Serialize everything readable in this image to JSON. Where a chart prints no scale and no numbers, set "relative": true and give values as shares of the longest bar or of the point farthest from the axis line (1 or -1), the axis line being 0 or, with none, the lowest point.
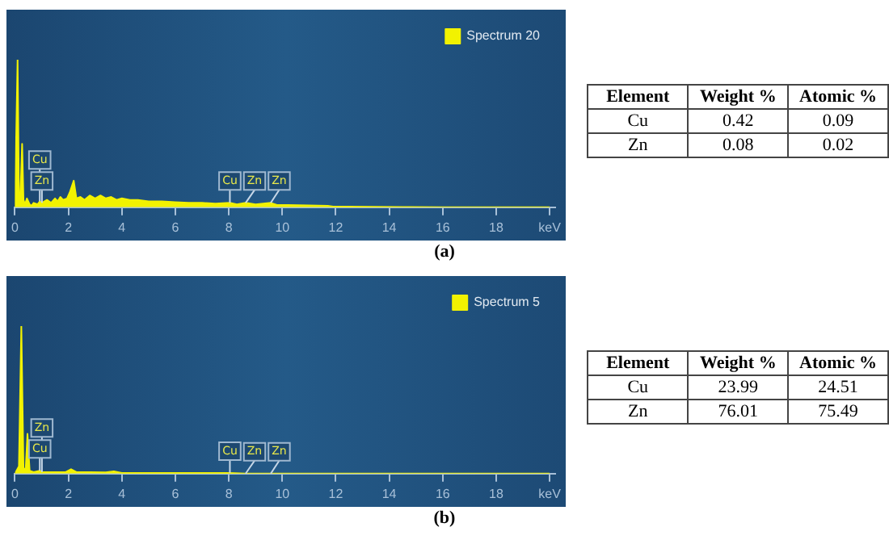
{
  "chart_data": [
    {
      "type": "area",
      "title": "(a)",
      "relative": true,
      "legend": "top right",
      "xlim": [
        0,
        20.2
      ],
      "xticks": [
        0,
        2,
        4,
        6,
        8,
        10,
        12,
        14,
        16,
        18,
        {
          "value": 20,
          "label": "keV"
        }
      ],
      "grid": false,
      "x": [
        0,
        0.1,
        0.15,
        0.2,
        0.27,
        0.32,
        0.38,
        0.45,
        0.55,
        0.62,
        0.7,
        0.85,
        0.93,
        1.01,
        1.2,
        1.35,
        1.5,
        1.6,
        1.7,
        1.8,
        1.95,
        2.05,
        2.2,
        2.3,
        2.45,
        2.6,
        2.8,
        3.0,
        3.2,
        3.4,
        3.6,
        3.8,
        4.0,
        4.3,
        4.6,
        5.0,
        5.5,
        6.0,
        6.5,
        7.0,
        7.5,
        8.04,
        8.3,
        8.63,
        9.0,
        9.57,
        9.8,
        10.2,
        11,
        11.7,
        11.9,
        12.5,
        13.5,
        14.5,
        16,
        18,
        20
      ],
      "series": [
        {
          "name": "Spectrum 20",
          "color": "#f2f200",
          "values": [
            0,
            1,
            0.1,
            0.05,
            0.43,
            0.05,
            0.02,
            0.06,
            0.02,
            0.01,
            0.03,
            0.02,
            0.04,
            0.03,
            0.05,
            0.03,
            0.06,
            0.04,
            0.07,
            0.05,
            0.06,
            0.1,
            0.18,
            0.06,
            0.07,
            0.05,
            0.08,
            0.06,
            0.08,
            0.06,
            0.07,
            0.05,
            0.06,
            0.05,
            0.05,
            0.04,
            0.04,
            0.035,
            0.03,
            0.03,
            0.025,
            0.03,
            0.02,
            0.03,
            0.02,
            0.03,
            0.015,
            0.015,
            0.012,
            0.01,
            0.004,
            0.004,
            0.003,
            0.002,
            0,
            0,
            0
          ]
        }
      ],
      "annotations": [
        {
          "text": "Zn",
          "x": 1.01,
          "y": 0.03
        },
        {
          "text": "Cu",
          "x": 0.93,
          "y": 0.04
        },
        {
          "text": "Cu",
          "x": 8.04,
          "y": 0.03
        },
        {
          "text": "Zn",
          "x": 8.63,
          "y": 0.03
        },
        {
          "text": "Zn",
          "x": 9.57,
          "y": 0.03
        }
      ]
    },
    {
      "type": "other",
      "annotations": [
        "Element",
        "Weight %",
        "Atomic %",
        "Cu",
        "0.42",
        "0.09",
        "Zn",
        "0.08",
        "0.02"
      ]
    },
    {
      "type": "area",
      "title": "(b)",
      "relative": true,
      "legend": "top right",
      "xlim": [
        0,
        20.2
      ],
      "xticks": [
        0,
        2,
        4,
        6,
        8,
        10,
        12,
        14,
        16,
        18,
        {
          "value": 20,
          "label": "keV"
        }
      ],
      "grid": false,
      "x": [
        0,
        0.15,
        0.24,
        0.32,
        0.4,
        0.47,
        0.55,
        0.7,
        0.93,
        1.01,
        1.5,
        1.9,
        2.1,
        2.3,
        2.8,
        3.4,
        3.7,
        4.0,
        5,
        6,
        7,
        8.04,
        8.63,
        9.57,
        20
      ],
      "series": [
        {
          "name": "Spectrum 5",
          "color": "#f2f200",
          "values": [
            0,
            0.05,
            1,
            0.04,
            0.02,
            0.27,
            0.02,
            0.01,
            0.02,
            0.01,
            0.01,
            0.01,
            0.03,
            0.01,
            0.01,
            0.008,
            0.015,
            0.005,
            0.005,
            0.005,
            0.005,
            0.005,
            0,
            0,
            0
          ]
        }
      ],
      "annotations": [
        {
          "text": "Cu",
          "x": 0.93,
          "y": 0.02
        },
        {
          "text": "Zn",
          "x": 1.01,
          "y": 0.01
        },
        {
          "text": "Cu",
          "x": 8.04,
          "y": 0.005
        },
        {
          "text": "Zn",
          "x": 8.63,
          "y": 0
        },
        {
          "text": "Zn",
          "x": 9.57,
          "y": 0
        }
      ]
    },
    {
      "type": "other",
      "annotations": [
        "Element",
        "Weight %",
        "Atomic %",
        "Cu",
        "23.99",
        "24.51",
        "Zn",
        "76.01",
        "75.49"
      ]
    }
  ]
}
